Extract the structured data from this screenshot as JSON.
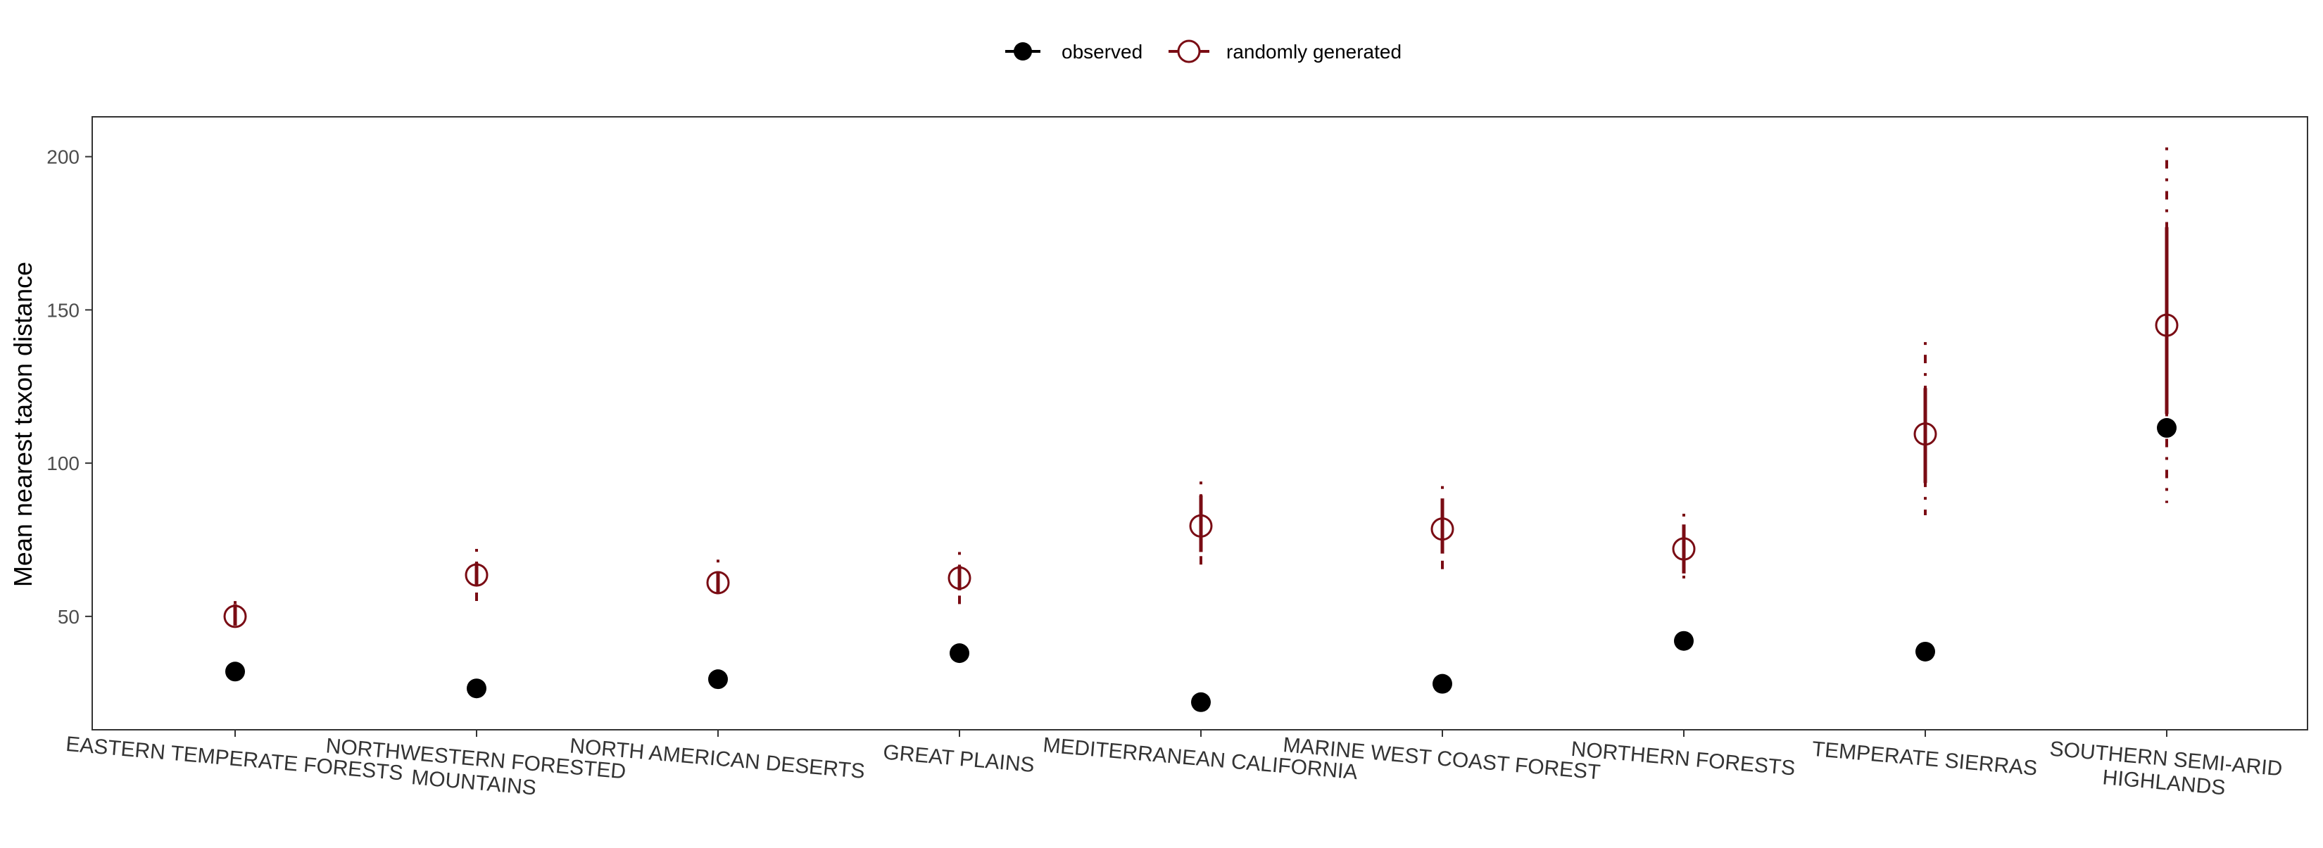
{
  "legend": {
    "observed_label": "observed",
    "random_label": "randomly generated"
  },
  "colors": {
    "observed": "#000000",
    "random": "#7a0c14",
    "axis": "#4d4d4d",
    "tick_text": "#4d4d4d"
  },
  "chart_data": {
    "type": "scatter",
    "title": "",
    "xlabel": "",
    "ylabel": "Mean nearest taxon distance",
    "ylim": [
      13,
      213
    ],
    "yticks": [
      50,
      100,
      150,
      200
    ],
    "grid": false,
    "legend_position": "top",
    "categories": [
      "EASTERN TEMPERATE FORESTS",
      "NORTHWESTERN FORESTED MOUNTAINS",
      "NORTH AMERICAN DESERTS",
      "GREAT PLAINS",
      "MEDITERRANEAN CALIFORNIA",
      "MARINE WEST COAST FOREST",
      "NORTHERN FORESTS",
      "TEMPERATE SIERRAS",
      "SOUTHERN SEMI-ARID HIGHLANDS"
    ],
    "series": [
      {
        "name": "observed",
        "values": [
          32,
          26.5,
          29.5,
          38,
          22,
          28,
          42,
          38.5,
          111.5
        ]
      },
      {
        "name": "randomly generated",
        "values": [
          50,
          63.5,
          61,
          62.5,
          79.5,
          78.5,
          72,
          109.5,
          145
        ],
        "interval_solid": [
          [
            47,
            54
          ],
          [
            60,
            67.5
          ],
          [
            57.5,
            64.5
          ],
          [
            58.5,
            66.5
          ],
          [
            71,
            89.5
          ],
          [
            70.5,
            88.5
          ],
          [
            64,
            80
          ],
          [
            93.5,
            124.5
          ],
          [
            116,
            177
          ]
        ],
        "interval_dashed": [
          [
            46,
            55
          ],
          [
            55,
            72
          ],
          [
            56,
            68.5
          ],
          [
            54,
            71
          ],
          [
            64,
            94
          ],
          [
            64,
            92.5
          ],
          [
            60,
            83.5
          ],
          [
            83,
            139.5
          ],
          [
            87,
            203
          ]
        ]
      }
    ]
  }
}
